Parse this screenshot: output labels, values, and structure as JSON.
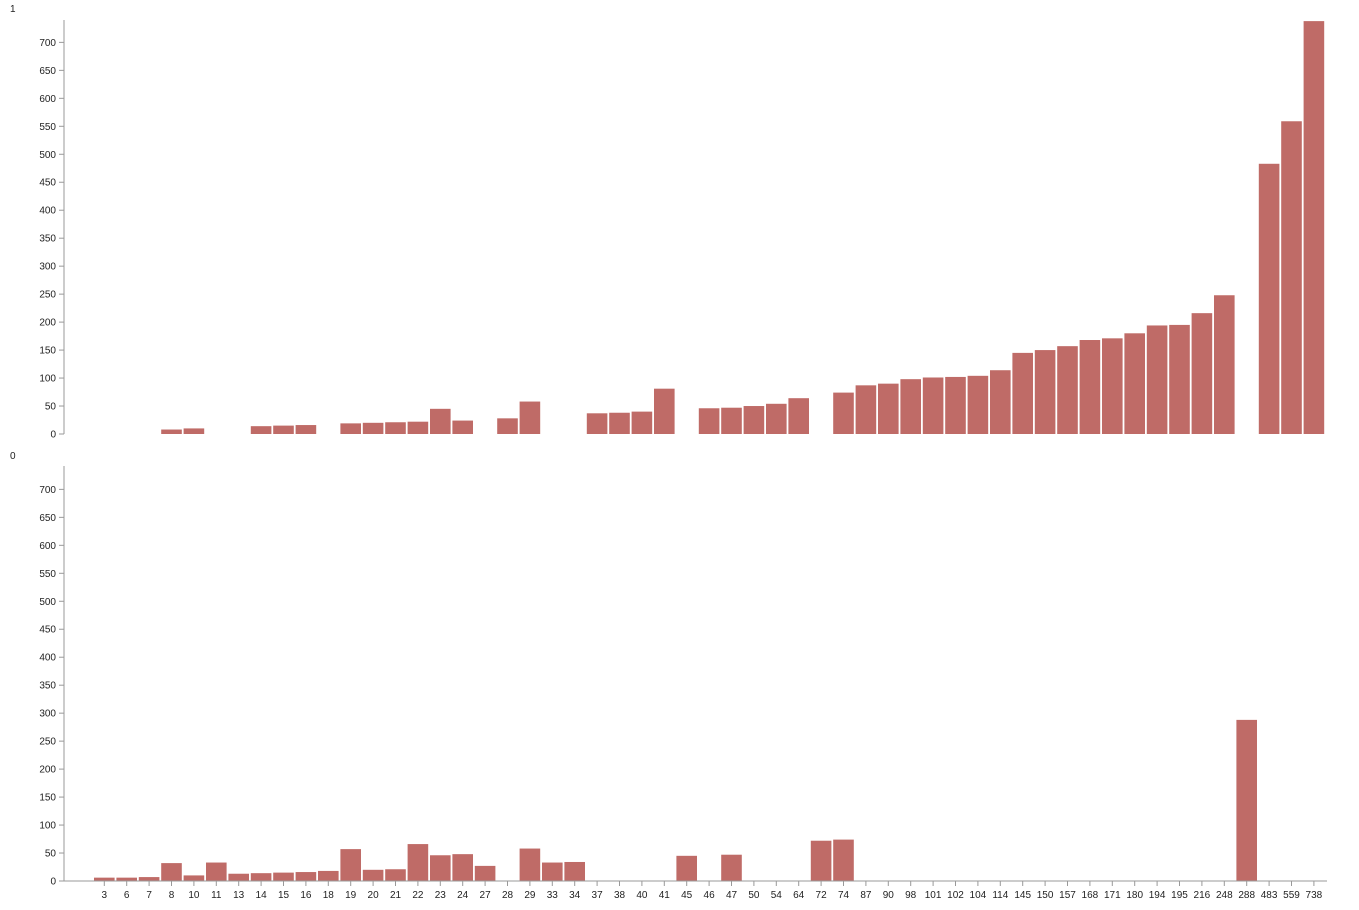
{
  "chart_data": [
    {
      "type": "bar",
      "panel_label": "1",
      "ylim": [
        0,
        740
      ],
      "y_ticks": [
        0,
        50,
        100,
        150,
        200,
        250,
        300,
        350,
        400,
        450,
        500,
        550,
        600,
        650,
        700
      ],
      "categories": [
        "3",
        "6",
        "7",
        "8",
        "10",
        "11",
        "13",
        "14",
        "15",
        "16",
        "18",
        "19",
        "20",
        "21",
        "22",
        "23",
        "24",
        "27",
        "28",
        "29",
        "33",
        "34",
        "37",
        "38",
        "40",
        "41",
        "45",
        "46",
        "47",
        "50",
        "54",
        "64",
        "72",
        "74",
        "87",
        "90",
        "98",
        "101",
        "102",
        "104",
        "114",
        "145",
        "150",
        "157",
        "168",
        "171",
        "180",
        "194",
        "195",
        "216",
        "248",
        "288",
        "483",
        "559",
        "738"
      ],
      "values": [
        0,
        0,
        0,
        8,
        10,
        0,
        0,
        14,
        15,
        16,
        0,
        19,
        20,
        21,
        22,
        45,
        24,
        0,
        28,
        58,
        0,
        0,
        37,
        38,
        40,
        81,
        0,
        46,
        47,
        50,
        54,
        64,
        0,
        74,
        87,
        90,
        98,
        101,
        102,
        104,
        114,
        145,
        150,
        157,
        168,
        171,
        180,
        194,
        195,
        216,
        248,
        0,
        483,
        559,
        738
      ]
    },
    {
      "type": "bar",
      "panel_label": "0",
      "ylim": [
        0,
        740
      ],
      "y_ticks": [
        0,
        50,
        100,
        150,
        200,
        250,
        300,
        350,
        400,
        450,
        500,
        550,
        600,
        650,
        700
      ],
      "categories": [
        "3",
        "6",
        "7",
        "8",
        "10",
        "11",
        "13",
        "14",
        "15",
        "16",
        "18",
        "19",
        "20",
        "21",
        "22",
        "23",
        "24",
        "27",
        "28",
        "29",
        "33",
        "34",
        "37",
        "38",
        "40",
        "41",
        "45",
        "46",
        "47",
        "50",
        "54",
        "64",
        "72",
        "74",
        "87",
        "90",
        "98",
        "101",
        "102",
        "104",
        "114",
        "145",
        "150",
        "157",
        "168",
        "171",
        "180",
        "194",
        "195",
        "216",
        "248",
        "288",
        "483",
        "559",
        "738"
      ],
      "values": [
        6,
        6,
        7,
        32,
        10,
        33,
        13,
        14,
        15,
        16,
        18,
        57,
        20,
        21,
        66,
        46,
        48,
        27,
        0,
        58,
        33,
        34,
        0,
        0,
        0,
        0,
        45,
        0,
        47,
        0,
        0,
        0,
        72,
        74,
        0,
        0,
        0,
        0,
        0,
        0,
        0,
        0,
        0,
        0,
        0,
        0,
        0,
        0,
        0,
        0,
        0,
        288,
        0,
        0,
        0
      ]
    }
  ],
  "colors": {
    "bar": "#bf6b67",
    "axis": "#999999"
  }
}
